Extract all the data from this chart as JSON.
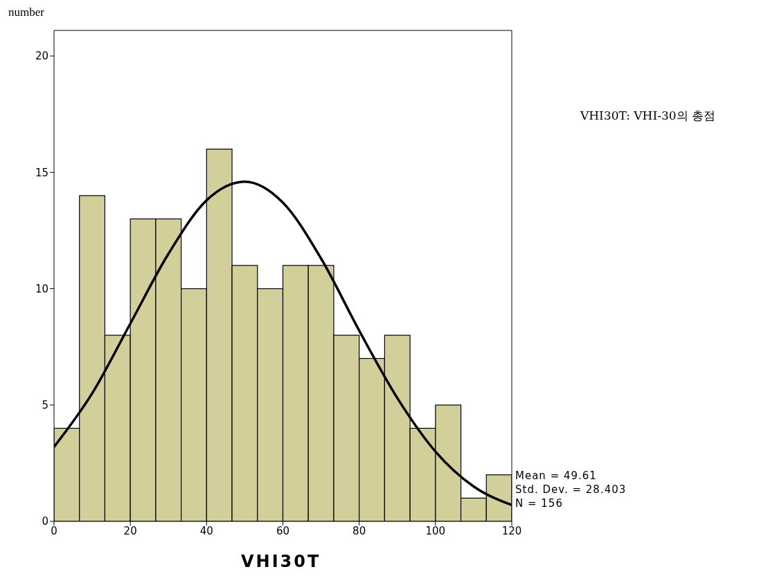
{
  "chart_data": {
    "type": "histogram",
    "xlabel": "VHI30T",
    "ylabel": "number",
    "bins": [
      0,
      6.667,
      13.333,
      20,
      26.667,
      33.333,
      40,
      46.667,
      53.333,
      60,
      66.667,
      73.333,
      80,
      86.667,
      93.333,
      100,
      106.667,
      113.333,
      120
    ],
    "values": [
      4,
      14,
      8,
      13,
      13,
      10,
      16,
      11,
      10,
      11,
      11,
      8,
      7,
      8,
      4,
      5,
      1,
      2
    ],
    "color": "#d3cf9a",
    "series": [
      {
        "type": "line",
        "color": "#000000",
        "x": [
          0,
          10,
          20,
          30,
          40,
          50,
          60,
          70,
          80,
          90,
          100,
          110,
          120
        ],
        "values": [
          3.2,
          5.5,
          8.5,
          11.5,
          13.8,
          14.6,
          13.7,
          11.3,
          8.2,
          5.3,
          3.0,
          1.5,
          0.7
        ]
      }
    ],
    "xlim": [
      0,
      120
    ],
    "xticks": [
      0,
      20,
      40,
      60,
      80,
      100,
      120
    ],
    "ylim": [
      0,
      21.1
    ],
    "yticks": [
      0,
      5,
      10,
      15,
      20
    ],
    "grid": false,
    "annotations": [
      "VHI30T: VHI-30의 총점",
      "Mean = 49.61",
      "Std. Dev. = 28.403",
      "N = 156"
    ]
  }
}
